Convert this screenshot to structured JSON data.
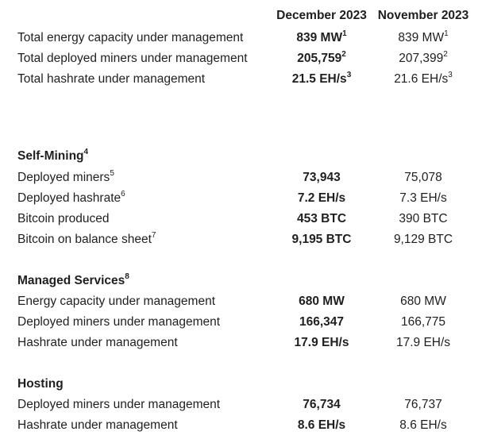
{
  "headers": {
    "dec": "December 2023",
    "nov": "November 2023"
  },
  "summary": [
    {
      "label": "Total energy capacity under management",
      "label_sup": "",
      "dec": "839 MW",
      "dec_sup": "1",
      "nov": "839 MW",
      "nov_sup": "1"
    },
    {
      "label": "Total deployed miners under management",
      "label_sup": "",
      "dec": "205,759",
      "dec_sup": "2",
      "nov": "207,399",
      "nov_sup": "2"
    },
    {
      "label": "Total hashrate under management",
      "label_sup": "",
      "dec": "21.5 EH/s",
      "dec_sup": "3",
      "nov": "21.6 EH/s",
      "nov_sup": "3"
    }
  ],
  "sections": [
    {
      "title": "Self-Mining",
      "title_sup": "4",
      "rows": [
        {
          "label": "Deployed miners",
          "label_sup": "5",
          "dec": "73,943",
          "dec_sup": "",
          "nov": "75,078",
          "nov_sup": ""
        },
        {
          "label": "Deployed hashrate",
          "label_sup": "6",
          "dec": "7.2 EH/s",
          "dec_sup": "",
          "nov": "7.3 EH/s",
          "nov_sup": ""
        },
        {
          "label": "Bitcoin produced",
          "label_sup": "",
          "dec": "453 BTC",
          "dec_sup": "",
          "nov": "390 BTC",
          "nov_sup": ""
        },
        {
          "label": "Bitcoin on balance sheet",
          "label_sup": "7",
          "dec": "9,195 BTC",
          "dec_sup": "",
          "nov": "9,129 BTC",
          "nov_sup": ""
        }
      ]
    },
    {
      "title": "Managed Services",
      "title_sup": "8",
      "rows": [
        {
          "label": "Energy capacity under management",
          "label_sup": "",
          "dec": "680 MW",
          "dec_sup": "",
          "nov": "680 MW",
          "nov_sup": ""
        },
        {
          "label": "Deployed miners under management",
          "label_sup": "",
          "dec": "166,347",
          "dec_sup": "",
          "nov": "166,775",
          "nov_sup": ""
        },
        {
          "label": "Hashrate under management",
          "label_sup": "",
          "dec": "17.9 EH/s",
          "dec_sup": "",
          "nov": "17.9 EH/s",
          "nov_sup": ""
        }
      ]
    },
    {
      "title": "Hosting",
      "title_sup": "",
      "rows": [
        {
          "label": "Deployed miners under management",
          "label_sup": "",
          "dec": "76,734",
          "dec_sup": "",
          "nov": "76,737",
          "nov_sup": ""
        },
        {
          "label": "Hashrate under management",
          "label_sup": "",
          "dec": "8.6 EH/s",
          "dec_sup": "",
          "nov": "8.6 EH/s",
          "nov_sup": ""
        }
      ]
    }
  ]
}
